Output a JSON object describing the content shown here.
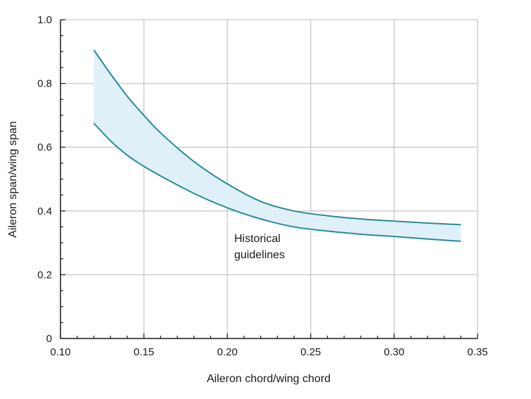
{
  "chart_data": {
    "type": "area",
    "xlabel": "Aileron chord/wing chord",
    "ylabel": "Aileron span/wing span",
    "xlim": [
      0.1,
      0.35
    ],
    "ylim": [
      0,
      1.0
    ],
    "x_ticks": [
      "0.10",
      "0.15",
      "0.20",
      "0.25",
      "0.30",
      "0.35"
    ],
    "y_ticks": [
      "0",
      "0.2",
      "0.4",
      "0.6",
      "0.8",
      "1.0"
    ],
    "grid": true,
    "band_label": [
      "Historical",
      "guidelines"
    ],
    "series": [
      {
        "x": [
          0.12,
          0.13,
          0.14,
          0.15,
          0.16,
          0.18,
          0.2,
          0.22,
          0.24,
          0.26,
          0.28,
          0.3,
          0.32,
          0.34
        ],
        "y": [
          0.905,
          0.83,
          0.76,
          0.7,
          0.645,
          0.555,
          0.485,
          0.43,
          0.4,
          0.385,
          0.375,
          0.368,
          0.362,
          0.357
        ]
      },
      {
        "x": [
          0.12,
          0.13,
          0.14,
          0.15,
          0.16,
          0.18,
          0.2,
          0.22,
          0.24,
          0.26,
          0.28,
          0.3,
          0.32,
          0.34
        ],
        "y": [
          0.675,
          0.62,
          0.575,
          0.54,
          0.51,
          0.455,
          0.41,
          0.375,
          0.35,
          0.337,
          0.327,
          0.32,
          0.312,
          0.305
        ]
      }
    ],
    "colors": {
      "line": "#2a8a9a",
      "band": "#dff0f8",
      "grid": "#c8c8c8",
      "axis": "#1a1a1a"
    }
  }
}
